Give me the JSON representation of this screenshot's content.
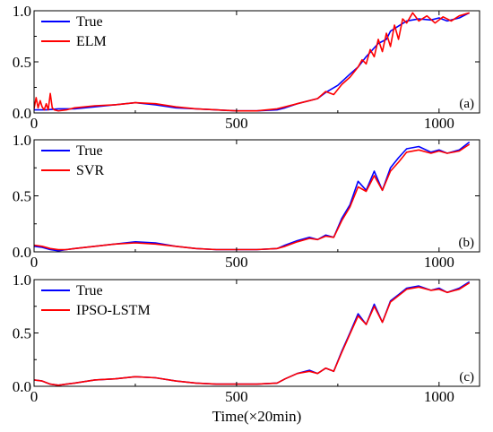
{
  "chart_data": [
    {
      "type": "line",
      "panel_label": "(a)",
      "xlim": [
        0,
        1100
      ],
      "ylim": [
        0,
        1.0
      ],
      "xticks": [
        "0",
        "500",
        "1000"
      ],
      "yticks": [
        "0.0",
        "0.5",
        "1.0"
      ],
      "legend_position": "top-left",
      "series": [
        {
          "name": "True",
          "color": "#0000ff",
          "x": [
            0,
            30,
            60,
            100,
            150,
            200,
            250,
            300,
            350,
            400,
            450,
            500,
            550,
            600,
            620,
            650,
            700,
            720,
            750,
            780,
            800,
            820,
            850,
            870,
            880,
            900,
            920,
            950,
            980,
            1000,
            1020,
            1050,
            1075
          ],
          "y": [
            0.03,
            0.03,
            0.04,
            0.04,
            0.06,
            0.08,
            0.1,
            0.08,
            0.05,
            0.04,
            0.03,
            0.02,
            0.02,
            0.03,
            0.05,
            0.09,
            0.14,
            0.2,
            0.27,
            0.38,
            0.45,
            0.55,
            0.68,
            0.72,
            0.8,
            0.85,
            0.9,
            0.92,
            0.91,
            0.93,
            0.9,
            0.93,
            0.98
          ]
        },
        {
          "name": "ELM",
          "color": "#ff0000",
          "x": [
            0,
            5,
            10,
            15,
            20,
            25,
            30,
            35,
            40,
            45,
            50,
            60,
            80,
            100,
            150,
            200,
            250,
            300,
            350,
            400,
            450,
            500,
            550,
            600,
            620,
            650,
            680,
            700,
            720,
            740,
            760,
            780,
            800,
            810,
            820,
            830,
            840,
            850,
            860,
            870,
            880,
            890,
            900,
            910,
            920,
            935,
            950,
            970,
            990,
            1010,
            1030,
            1050,
            1075
          ],
          "y": [
            0.04,
            0.15,
            0.05,
            0.12,
            0.06,
            0.03,
            0.09,
            0.03,
            0.19,
            0.05,
            0.03,
            0.02,
            0.03,
            0.05,
            0.07,
            0.08,
            0.1,
            0.09,
            0.06,
            0.04,
            0.03,
            0.02,
            0.02,
            0.04,
            0.06,
            0.09,
            0.12,
            0.14,
            0.21,
            0.18,
            0.28,
            0.35,
            0.45,
            0.52,
            0.48,
            0.62,
            0.55,
            0.72,
            0.6,
            0.78,
            0.65,
            0.86,
            0.72,
            0.92,
            0.88,
            0.98,
            0.9,
            0.95,
            0.88,
            0.94,
            0.9,
            0.95,
            0.98
          ]
        }
      ]
    },
    {
      "type": "line",
      "panel_label": "(b)",
      "xlim": [
        0,
        1100
      ],
      "ylim": [
        0,
        1.0
      ],
      "xticks": [
        "0",
        "500",
        "1000"
      ],
      "yticks": [
        "0.0",
        "0.5",
        "1.0"
      ],
      "legend_position": "top-left",
      "series": [
        {
          "name": "True",
          "color": "#0000ff",
          "x": [
            0,
            20,
            40,
            60,
            80,
            100,
            150,
            200,
            250,
            300,
            350,
            400,
            450,
            500,
            550,
            600,
            620,
            650,
            680,
            700,
            720,
            740,
            760,
            780,
            800,
            820,
            840,
            860,
            880,
            900,
            920,
            950,
            980,
            1000,
            1020,
            1050,
            1075
          ],
          "y": [
            0.05,
            0.04,
            0.02,
            0.01,
            0.02,
            0.03,
            0.05,
            0.07,
            0.09,
            0.08,
            0.05,
            0.03,
            0.02,
            0.02,
            0.02,
            0.03,
            0.06,
            0.1,
            0.13,
            0.11,
            0.15,
            0.13,
            0.3,
            0.42,
            0.63,
            0.55,
            0.72,
            0.55,
            0.75,
            0.84,
            0.92,
            0.94,
            0.89,
            0.91,
            0.88,
            0.91,
            0.98
          ]
        },
        {
          "name": "SVR",
          "color": "#ff0000",
          "x": [
            0,
            20,
            40,
            60,
            80,
            100,
            150,
            200,
            250,
            300,
            350,
            400,
            450,
            500,
            550,
            600,
            620,
            650,
            680,
            700,
            720,
            740,
            760,
            780,
            800,
            820,
            840,
            860,
            880,
            900,
            920,
            950,
            980,
            1000,
            1020,
            1050,
            1075
          ],
          "y": [
            0.06,
            0.05,
            0.03,
            0.02,
            0.02,
            0.03,
            0.05,
            0.07,
            0.08,
            0.07,
            0.05,
            0.03,
            0.02,
            0.02,
            0.02,
            0.03,
            0.05,
            0.09,
            0.12,
            0.11,
            0.14,
            0.13,
            0.28,
            0.4,
            0.58,
            0.54,
            0.68,
            0.55,
            0.72,
            0.8,
            0.89,
            0.91,
            0.88,
            0.9,
            0.88,
            0.9,
            0.96
          ]
        }
      ]
    },
    {
      "type": "line",
      "panel_label": "(c)",
      "xlim": [
        0,
        1100
      ],
      "ylim": [
        0,
        1.0
      ],
      "xticks": [
        "0",
        "500",
        "1000"
      ],
      "yticks": [
        "0.0",
        "0.5",
        "1.0"
      ],
      "xlabel": "Time(×20min)",
      "legend_position": "top-left",
      "series": [
        {
          "name": "True",
          "color": "#0000ff",
          "x": [
            0,
            20,
            40,
            60,
            80,
            100,
            150,
            200,
            250,
            300,
            350,
            400,
            450,
            500,
            550,
            600,
            620,
            650,
            680,
            700,
            720,
            740,
            760,
            780,
            800,
            820,
            840,
            860,
            880,
            900,
            920,
            950,
            980,
            1000,
            1020,
            1050,
            1075
          ],
          "y": [
            0.06,
            0.05,
            0.02,
            0.01,
            0.02,
            0.03,
            0.06,
            0.07,
            0.09,
            0.08,
            0.05,
            0.03,
            0.02,
            0.02,
            0.02,
            0.03,
            0.07,
            0.12,
            0.15,
            0.12,
            0.17,
            0.14,
            0.33,
            0.5,
            0.68,
            0.58,
            0.77,
            0.6,
            0.8,
            0.86,
            0.92,
            0.94,
            0.9,
            0.92,
            0.88,
            0.92,
            0.98
          ]
        },
        {
          "name": "IPSO-LSTM",
          "color": "#ff0000",
          "x": [
            0,
            20,
            40,
            60,
            80,
            100,
            150,
            200,
            250,
            300,
            350,
            400,
            450,
            500,
            550,
            600,
            620,
            650,
            680,
            700,
            720,
            740,
            760,
            780,
            800,
            820,
            840,
            860,
            880,
            900,
            920,
            950,
            980,
            1000,
            1020,
            1050,
            1075
          ],
          "y": [
            0.06,
            0.05,
            0.02,
            0.01,
            0.02,
            0.03,
            0.06,
            0.07,
            0.09,
            0.08,
            0.05,
            0.03,
            0.02,
            0.02,
            0.02,
            0.03,
            0.07,
            0.12,
            0.14,
            0.12,
            0.17,
            0.14,
            0.32,
            0.49,
            0.66,
            0.58,
            0.75,
            0.6,
            0.79,
            0.85,
            0.91,
            0.93,
            0.9,
            0.91,
            0.88,
            0.91,
            0.97
          ]
        }
      ]
    }
  ]
}
